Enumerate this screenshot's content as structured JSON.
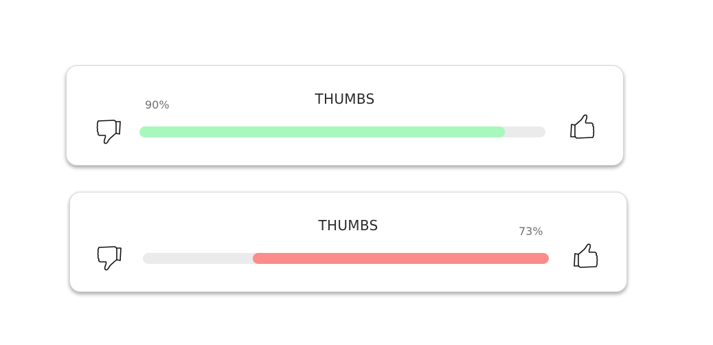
{
  "widgets": [
    {
      "title": "THUMBS",
      "percent_label": "90%",
      "level": 0.9,
      "fill_from": "left",
      "fill_color": "#a8f7bd",
      "track_color": "#ebebeb",
      "left_icon": "thumbs-down-icon",
      "right_icon": "thumbs-up-icon"
    },
    {
      "title": "THUMBS",
      "percent_label": "73%",
      "level": 0.73,
      "fill_from": "right",
      "fill_color": "#fa8c8c",
      "track_color": "#ebebeb",
      "left_icon": "thumbs-down-icon",
      "right_icon": "thumbs-up-icon"
    }
  ]
}
